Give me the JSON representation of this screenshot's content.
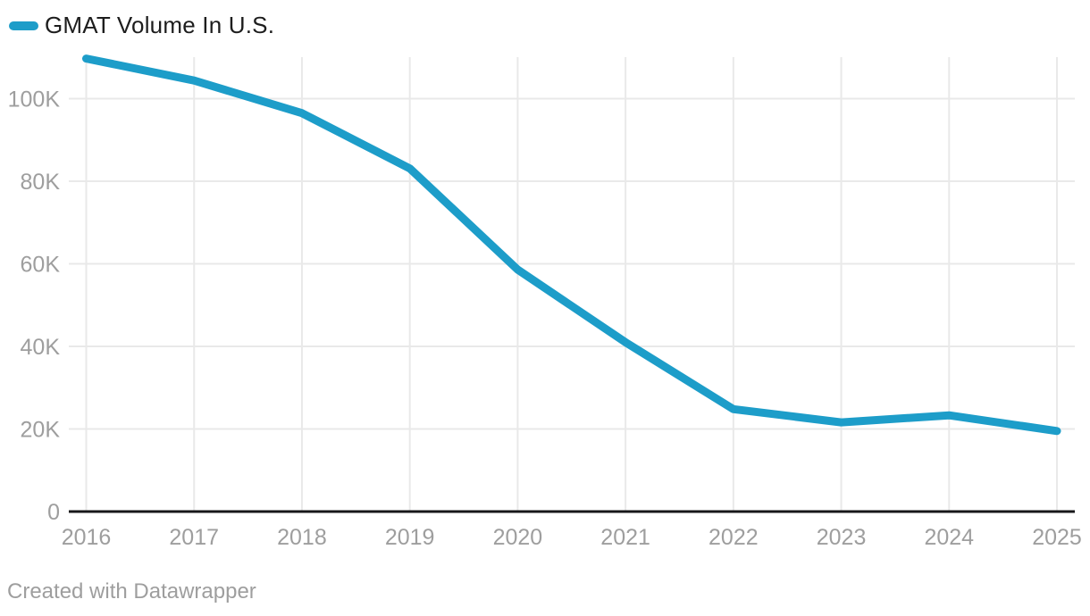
{
  "legend": {
    "label": "GMAT Volume In U.S."
  },
  "footer": {
    "text": "Created with Datawrapper"
  },
  "colors": {
    "line": "#1d9dc9",
    "grid": "#e9e9e9",
    "axis_baseline": "#17171a",
    "tick_label": "#9e9e9e",
    "legend_text": "#1d1d1d",
    "footer_text": "#9e9e9e",
    "background": "#ffffff"
  },
  "chart_data": {
    "type": "line",
    "title": "GMAT Volume In U.S.",
    "x": [
      2016,
      2017,
      2018,
      2019,
      2020,
      2021,
      2022,
      2023,
      2024,
      2025
    ],
    "series": [
      {
        "name": "GMAT Volume In U.S.",
        "values": [
          109700,
          104400,
          96500,
          83100,
          58600,
          41000,
          24800,
          21600,
          23300,
          19500
        ]
      }
    ],
    "xlabel": "",
    "ylabel": "",
    "ylim": [
      0,
      110000
    ],
    "y_ticks": [
      {
        "value": 0,
        "label": "0"
      },
      {
        "value": 20000,
        "label": "20K"
      },
      {
        "value": 40000,
        "label": "40K"
      },
      {
        "value": 60000,
        "label": "60K"
      },
      {
        "value": 80000,
        "label": "80K"
      },
      {
        "value": 100000,
        "label": "100K"
      }
    ],
    "grid": true,
    "legend_position": "top-left",
    "attribution": "Created with Datawrapper"
  }
}
